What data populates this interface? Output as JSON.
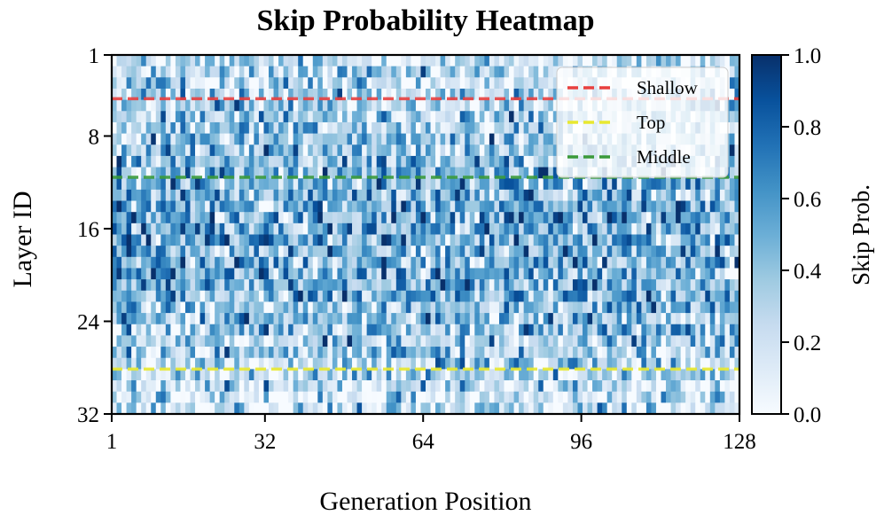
{
  "chart_data": {
    "type": "heatmap",
    "title": "Skip Probability Heatmap",
    "xlabel": "Generation Position",
    "ylabel": "Layer ID",
    "x_range": [
      1,
      128
    ],
    "y_range": [
      1,
      32
    ],
    "rows": 32,
    "cols": 128,
    "x_ticks": [
      "1",
      "32",
      "64",
      "96",
      "128"
    ],
    "y_ticks": [
      "1",
      "8",
      "16",
      "24",
      "32"
    ],
    "colorbar": {
      "label": "Skip Prob.",
      "range": [
        0.0,
        1.0
      ],
      "ticks": [
        "0.0",
        "0.2",
        "0.4",
        "0.6",
        "0.8",
        "1.0"
      ],
      "colormap": "Blues",
      "low_color": "#f7fbff",
      "high_color": "#08306b"
    },
    "row_mean_skip_prob": [
      0.2,
      0.24,
      0.27,
      0.3,
      0.32,
      0.34,
      0.36,
      0.38,
      0.4,
      0.42,
      0.44,
      0.46,
      0.48,
      0.5,
      0.52,
      0.52,
      0.52,
      0.5,
      0.5,
      0.48,
      0.46,
      0.44,
      0.42,
      0.4,
      0.38,
      0.34,
      0.3,
      0.26,
      0.24,
      0.22,
      0.2,
      0.18
    ],
    "reference_lines": [
      {
        "name": "Shallow",
        "layer": 4.4,
        "color": "#e8403f"
      },
      {
        "name": "Top",
        "layer": 28.5,
        "color": "#e8e830"
      },
      {
        "name": "Middle",
        "layer": 11.4,
        "color": "#3a9a3a"
      }
    ],
    "legend": {
      "position": "top-right",
      "entries": [
        "Shallow",
        "Top",
        "Middle"
      ]
    }
  }
}
